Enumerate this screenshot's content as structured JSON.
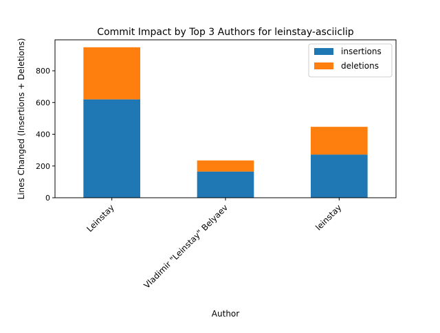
{
  "chart_data": {
    "type": "bar",
    "stacked": true,
    "title": "Commit Impact by Top 3 Authors for leinstay-asciiclip",
    "xlabel": "Author",
    "ylabel": "Lines Changed (Insertions + Deletions)",
    "categories": [
      "Leinstay",
      "Vladimir \"Leinstay\" Belyaev",
      "leinstay"
    ],
    "series": [
      {
        "name": "insertions",
        "values": [
          620,
          165,
          272
        ],
        "color": "#1f77b4"
      },
      {
        "name": "deletions",
        "values": [
          328,
          70,
          175
        ],
        "color": "#ff7f0e"
      }
    ],
    "ylim": [
      0,
      995
    ],
    "yticks": [
      0,
      200,
      400,
      600,
      800
    ],
    "grid": false,
    "legend_position": "top-right"
  }
}
